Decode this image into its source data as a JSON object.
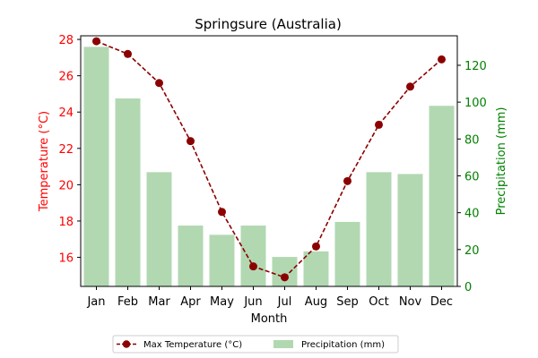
{
  "chart_data": {
    "type": "bar+line",
    "title": "Springsure (Australia)",
    "xlabel": "Month",
    "ylabel_left": "Temperature (°C)",
    "ylabel_right": "Precipitation (mm)",
    "categories": [
      "Jan",
      "Feb",
      "Mar",
      "Apr",
      "May",
      "Jun",
      "Jul",
      "Aug",
      "Sep",
      "Oct",
      "Nov",
      "Dec"
    ],
    "y_left_lim": [
      14.4,
      28.2
    ],
    "y_left_ticks": [
      16,
      18,
      20,
      22,
      24,
      26,
      28
    ],
    "y_right_lim": [
      0,
      136
    ],
    "y_right_ticks": [
      0,
      20,
      40,
      60,
      80,
      100,
      120
    ],
    "series": [
      {
        "name": "Max Temperature (°C)",
        "type": "line",
        "axis": "left",
        "color": "#8b0000",
        "values": [
          27.9,
          27.2,
          25.6,
          22.4,
          18.5,
          15.5,
          14.9,
          16.6,
          20.2,
          23.3,
          25.4,
          26.9
        ]
      },
      {
        "name": "Precipitation (mm)",
        "type": "bar",
        "axis": "right",
        "color": "#b2d8b2",
        "values": [
          130,
          102,
          62,
          33,
          28,
          33,
          16,
          19,
          35,
          62,
          61,
          98
        ]
      }
    ],
    "legend_position": "bottom-center",
    "left_axis_color": "#ff0000",
    "right_axis_color": "#008000"
  }
}
